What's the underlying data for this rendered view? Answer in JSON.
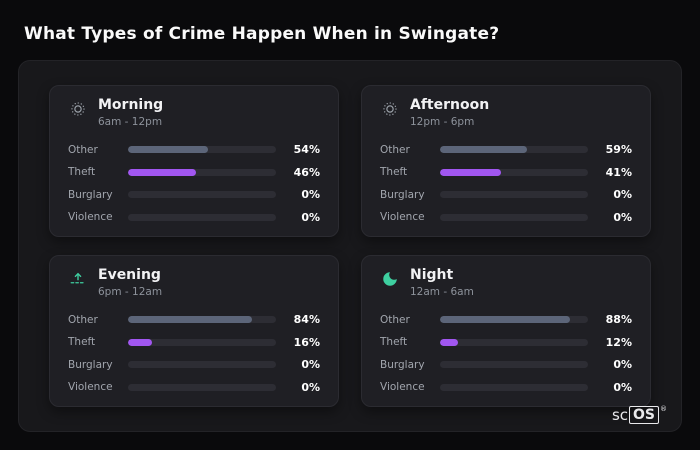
{
  "page": {
    "title": "What Types of Crime Happen When in Swingate?"
  },
  "brand": {
    "prefix": "sc",
    "suffix": "OS",
    "registered": "®"
  },
  "colors": {
    "background": "#0a0a0c",
    "panel": "#18181b",
    "card": "#1f1f24",
    "bar_track": "#2d2d34",
    "bar_other": "#5c6579",
    "bar_theft": "#a156f0",
    "accent_teal": "#3ecfa0"
  },
  "chart_data": [
    {
      "type": "bar",
      "title": "Morning",
      "subtitle": "6am - 12pm",
      "icon": "sun-icon",
      "categories": [
        "Other",
        "Theft",
        "Burglary",
        "Violence"
      ],
      "values": [
        54,
        46,
        0,
        0
      ],
      "value_labels": [
        "54%",
        "46%",
        "0%",
        "0%"
      ],
      "xlim": [
        0,
        100
      ],
      "legend": "none",
      "grid": false
    },
    {
      "type": "bar",
      "title": "Afternoon",
      "subtitle": "12pm - 6pm",
      "icon": "sun-icon",
      "categories": [
        "Other",
        "Theft",
        "Burglary",
        "Violence"
      ],
      "values": [
        59,
        41,
        0,
        0
      ],
      "value_labels": [
        "59%",
        "41%",
        "0%",
        "0%"
      ],
      "xlim": [
        0,
        100
      ],
      "legend": "none",
      "grid": false
    },
    {
      "type": "bar",
      "title": "Evening",
      "subtitle": "6pm - 12am",
      "icon": "sunset-icon",
      "categories": [
        "Other",
        "Theft",
        "Burglary",
        "Violence"
      ],
      "values": [
        84,
        16,
        0,
        0
      ],
      "value_labels": [
        "84%",
        "16%",
        "0%",
        "0%"
      ],
      "xlim": [
        0,
        100
      ],
      "legend": "none",
      "grid": false
    },
    {
      "type": "bar",
      "title": "Night",
      "subtitle": "12am - 6am",
      "icon": "moon-icon",
      "categories": [
        "Other",
        "Theft",
        "Burglary",
        "Violence"
      ],
      "values": [
        88,
        12,
        0,
        0
      ],
      "value_labels": [
        "88%",
        "12%",
        "0%",
        "0%"
      ],
      "xlim": [
        0,
        100
      ],
      "legend": "none",
      "grid": false
    }
  ]
}
